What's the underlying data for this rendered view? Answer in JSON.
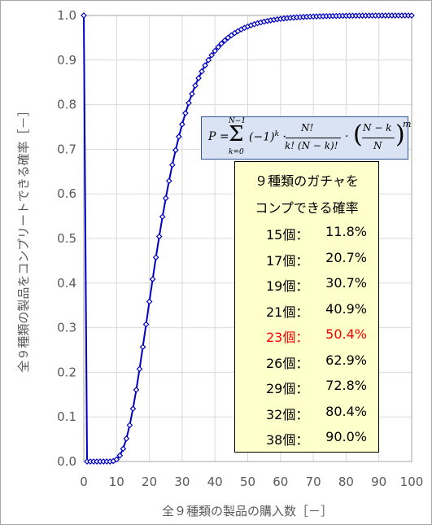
{
  "chart_data": {
    "type": "line",
    "xlabel": "全９種類の製品の購入数［－］",
    "ylabel": "全９種類の製品をコンプリートできる確率［－］",
    "xlim": [
      0,
      100
    ],
    "ylim": [
      0.0,
      1.0
    ],
    "x_ticks": [
      "0",
      "10",
      "20",
      "30",
      "40",
      "50",
      "60",
      "70",
      "80",
      "90",
      "100"
    ],
    "y_ticks": [
      "0.0",
      "0.1",
      "0.2",
      "0.3",
      "0.4",
      "0.5",
      "0.6",
      "0.7",
      "0.8",
      "0.9",
      "1.0"
    ],
    "grid": true,
    "series_color": "#0000c0",
    "marker": "diamond",
    "N": 9,
    "formula": "P = Σ_{k=0}^{N−1} (−1)^k · N!/(k!(N−k)!) · ((N−k)/N)^m",
    "table": {
      "title_line1": "９種類のガチャを",
      "title_line2": "コンプできる確率",
      "highlight_color": "#ff0000",
      "rows": [
        {
          "count": "15個：",
          "prob": "11.8%",
          "highlight": false
        },
        {
          "count": "17個：",
          "prob": "20.7%",
          "highlight": false
        },
        {
          "count": "19個：",
          "prob": "30.7%",
          "highlight": false
        },
        {
          "count": "21個：",
          "prob": "40.9%",
          "highlight": false
        },
        {
          "count": "23個：",
          "prob": "50.4%",
          "highlight": true
        },
        {
          "count": "26個：",
          "prob": "62.9%",
          "highlight": false
        },
        {
          "count": "29個：",
          "prob": "72.8%",
          "highlight": false
        },
        {
          "count": "32個：",
          "prob": "80.4%",
          "highlight": false
        },
        {
          "count": "38個：",
          "prob": "90.0%",
          "highlight": false
        }
      ]
    }
  }
}
